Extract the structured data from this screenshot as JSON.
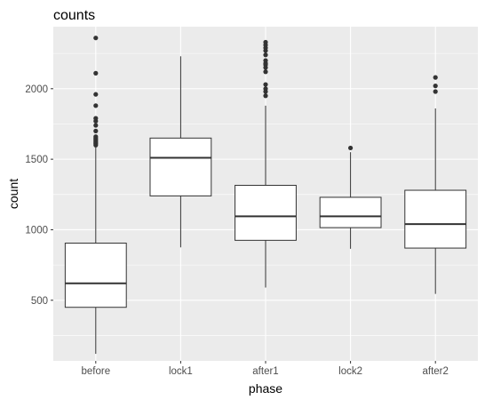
{
  "chart_data": {
    "type": "boxplot",
    "title": "counts",
    "xlabel": "phase",
    "ylabel": "count",
    "ylim": [
      70,
      2440
    ],
    "yticks": [
      500,
      1000,
      1500,
      2000
    ],
    "categories": [
      "before",
      "lock1",
      "after1",
      "lock2",
      "after2"
    ],
    "boxes": [
      {
        "category": "before",
        "min": 120,
        "q1": 450,
        "median": 620,
        "q3": 905,
        "max": 1590,
        "outliers": [
          1600,
          1610,
          1620,
          1630,
          1640,
          1650,
          1660,
          1700,
          1740,
          1770,
          1790,
          1880,
          1960,
          2110,
          2360
        ]
      },
      {
        "category": "lock1",
        "min": 875,
        "q1": 1240,
        "median": 1510,
        "q3": 1650,
        "max": 2230,
        "outliers": []
      },
      {
        "category": "after1",
        "min": 590,
        "q1": 925,
        "median": 1095,
        "q3": 1315,
        "max": 1880,
        "outliers": [
          1950,
          1980,
          2000,
          2030,
          2120,
          2150,
          2170,
          2180,
          2200,
          2240,
          2270,
          2290,
          2310,
          2330
        ]
      },
      {
        "category": "lock2",
        "min": 865,
        "q1": 1015,
        "median": 1095,
        "q3": 1230,
        "max": 1550,
        "outliers": [
          1580
        ]
      },
      {
        "category": "after2",
        "min": 545,
        "q1": 870,
        "median": 1040,
        "q3": 1280,
        "max": 1860,
        "outliers": [
          1980,
          2020,
          2080
        ]
      }
    ],
    "grid": true,
    "colors": {
      "panel": "#ebebeb",
      "grid_major": "#ffffff",
      "box_fill": "#ffffff",
      "box_line": "#333333"
    }
  }
}
